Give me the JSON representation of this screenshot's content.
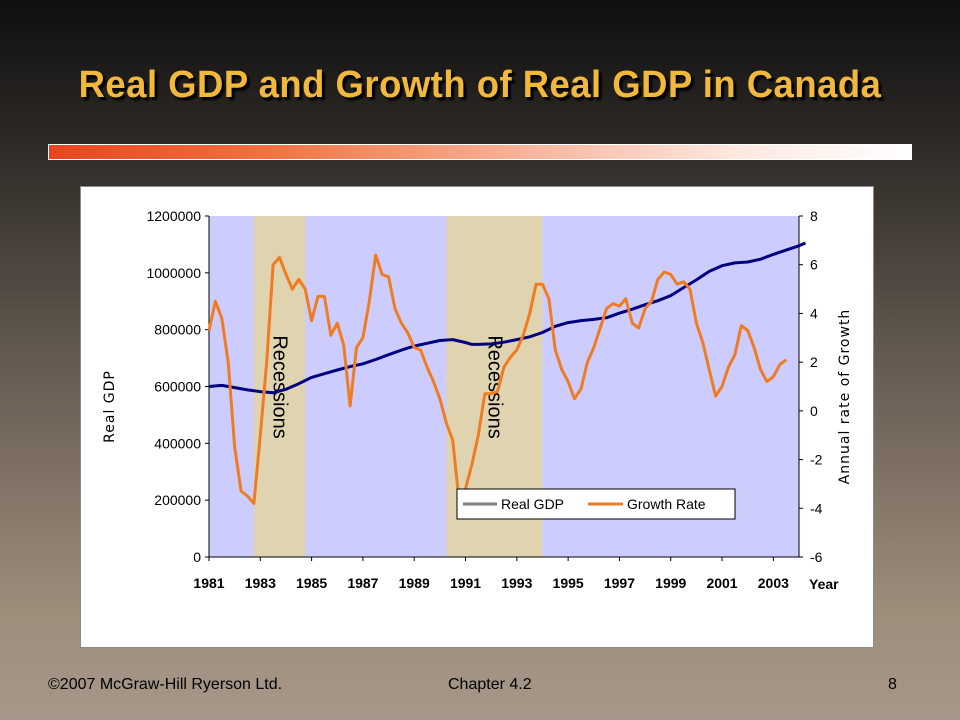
{
  "slide": {
    "title": "Real GDP and Growth of Real GDP in Canada",
    "footer_left": "©2007 McGraw-Hill Ryerson Ltd.",
    "footer_center": "Chapter 4.2",
    "footer_right": "8",
    "accent_colors": {
      "title": "#f2b83c",
      "bar_start": "#e8451d"
    }
  },
  "chart_data": {
    "type": "line",
    "xlabel": "Year",
    "ylabel": "Real GDP",
    "y2label": "Annual rate of Growth",
    "xlim": [
      1981,
      2004
    ],
    "ylim": [
      0,
      1200000
    ],
    "y2lim": [
      -6,
      8
    ],
    "x_ticks": [
      1981,
      1983,
      1985,
      1987,
      1989,
      1991,
      1993,
      1995,
      1997,
      1999,
      2001,
      2003
    ],
    "y_ticks": [
      0,
      200000,
      400000,
      600000,
      800000,
      1000000,
      1200000
    ],
    "y2_ticks": [
      -6,
      -4,
      -2,
      0,
      2,
      4,
      6,
      8
    ],
    "plot_background": "#ccccff",
    "shaded_periods": [
      {
        "label": "Recessions",
        "start": 1982.75,
        "end": 1984.75,
        "color": "#e0d4b0"
      },
      {
        "label": "Recessions",
        "start": 1990.25,
        "end": 1994.0,
        "color": "#e0d4b0"
      }
    ],
    "legend_position": "bottom-right",
    "series": [
      {
        "name": "Real GDP",
        "axis": "left",
        "color": "#000080",
        "legend_color": "#7f7f7f",
        "points": [
          [
            1981.0,
            600000
          ],
          [
            1981.5,
            604000
          ],
          [
            1982.0,
            596000
          ],
          [
            1982.5,
            588000
          ],
          [
            1983.0,
            582000
          ],
          [
            1983.5,
            578000
          ],
          [
            1984.0,
            590000
          ],
          [
            1984.5,
            610000
          ],
          [
            1985.0,
            632000
          ],
          [
            1985.5,
            645000
          ],
          [
            1986.0,
            658000
          ],
          [
            1986.5,
            670000
          ],
          [
            1987.0,
            680000
          ],
          [
            1987.5,
            695000
          ],
          [
            1988.0,
            712000
          ],
          [
            1988.5,
            728000
          ],
          [
            1989.0,
            742000
          ],
          [
            1989.5,
            752000
          ],
          [
            1990.0,
            762000
          ],
          [
            1990.5,
            765000
          ],
          [
            1991.0,
            755000
          ],
          [
            1991.25,
            748000
          ],
          [
            1991.5,
            748000
          ],
          [
            1992.0,
            750000
          ],
          [
            1992.5,
            756000
          ],
          [
            1993.0,
            765000
          ],
          [
            1993.5,
            775000
          ],
          [
            1994.0,
            790000
          ],
          [
            1994.5,
            812000
          ],
          [
            1995.0,
            825000
          ],
          [
            1995.5,
            832000
          ],
          [
            1996.0,
            836000
          ],
          [
            1996.5,
            842000
          ],
          [
            1997.0,
            858000
          ],
          [
            1997.5,
            872000
          ],
          [
            1998.0,
            888000
          ],
          [
            1998.5,
            902000
          ],
          [
            1999.0,
            920000
          ],
          [
            1999.5,
            948000
          ],
          [
            2000.0,
            975000
          ],
          [
            2000.5,
            1005000
          ],
          [
            2001.0,
            1025000
          ],
          [
            2001.5,
            1035000
          ],
          [
            2002.0,
            1038000
          ],
          [
            2002.5,
            1048000
          ],
          [
            2003.0,
            1065000
          ],
          [
            2003.5,
            1080000
          ],
          [
            2004.0,
            1095000
          ],
          [
            2004.25,
            1105000
          ]
        ]
      },
      {
        "name": "Growth Rate",
        "axis": "right",
        "color": "#f07c22",
        "points": [
          [
            1981.0,
            3.3
          ],
          [
            1981.25,
            4.5
          ],
          [
            1981.5,
            3.8
          ],
          [
            1981.75,
            2.0
          ],
          [
            1982.0,
            -1.5
          ],
          [
            1982.25,
            -3.3
          ],
          [
            1982.5,
            -3.5
          ],
          [
            1982.75,
            -3.8
          ],
          [
            1983.0,
            -1.0
          ],
          [
            1983.25,
            2.0
          ],
          [
            1983.5,
            6.0
          ],
          [
            1983.75,
            6.3
          ],
          [
            1984.0,
            5.6
          ],
          [
            1984.25,
            5.0
          ],
          [
            1984.5,
            5.4
          ],
          [
            1984.75,
            5.0
          ],
          [
            1985.0,
            3.7
          ],
          [
            1985.25,
            4.7
          ],
          [
            1985.5,
            4.7
          ],
          [
            1985.75,
            3.1
          ],
          [
            1986.0,
            3.6
          ],
          [
            1986.25,
            2.7
          ],
          [
            1986.5,
            0.2
          ],
          [
            1986.75,
            2.6
          ],
          [
            1987.0,
            3.0
          ],
          [
            1987.25,
            4.5
          ],
          [
            1987.5,
            6.4
          ],
          [
            1987.75,
            5.6
          ],
          [
            1988.0,
            5.5
          ],
          [
            1988.25,
            4.2
          ],
          [
            1988.5,
            3.6
          ],
          [
            1988.75,
            3.2
          ],
          [
            1989.0,
            2.6
          ],
          [
            1989.25,
            2.5
          ],
          [
            1989.5,
            1.8
          ],
          [
            1989.75,
            1.2
          ],
          [
            1990.0,
            0.5
          ],
          [
            1990.25,
            -0.5
          ],
          [
            1990.5,
            -1.2
          ],
          [
            1990.75,
            -3.7
          ],
          [
            1991.0,
            -3.2
          ],
          [
            1991.25,
            -2.2
          ],
          [
            1991.5,
            -1.0
          ],
          [
            1991.75,
            0.7
          ],
          [
            1992.0,
            0.7
          ],
          [
            1992.25,
            0.8
          ],
          [
            1992.5,
            1.8
          ],
          [
            1992.75,
            2.2
          ],
          [
            1993.0,
            2.5
          ],
          [
            1993.25,
            3.1
          ],
          [
            1993.5,
            4.0
          ],
          [
            1993.75,
            5.2
          ],
          [
            1994.0,
            5.2
          ],
          [
            1994.25,
            4.6
          ],
          [
            1994.5,
            2.5
          ],
          [
            1994.75,
            1.7
          ],
          [
            1995.0,
            1.2
          ],
          [
            1995.25,
            0.5
          ],
          [
            1995.5,
            0.9
          ],
          [
            1995.75,
            2.0
          ],
          [
            1996.0,
            2.6
          ],
          [
            1996.25,
            3.4
          ],
          [
            1996.5,
            4.2
          ],
          [
            1996.75,
            4.4
          ],
          [
            1997.0,
            4.3
          ],
          [
            1997.25,
            4.6
          ],
          [
            1997.5,
            3.6
          ],
          [
            1997.75,
            3.4
          ],
          [
            1998.0,
            4.2
          ],
          [
            1998.25,
            4.5
          ],
          [
            1998.5,
            5.4
          ],
          [
            1998.75,
            5.7
          ],
          [
            1999.0,
            5.6
          ],
          [
            1999.25,
            5.2
          ],
          [
            1999.5,
            5.3
          ],
          [
            1999.75,
            5.0
          ],
          [
            2000.0,
            3.6
          ],
          [
            2000.25,
            2.8
          ],
          [
            2000.5,
            1.7
          ],
          [
            2000.75,
            0.6
          ],
          [
            2001.0,
            1.0
          ],
          [
            2001.25,
            1.8
          ],
          [
            2001.5,
            2.3
          ],
          [
            2001.75,
            3.5
          ],
          [
            2002.0,
            3.3
          ],
          [
            2002.25,
            2.6
          ],
          [
            2002.5,
            1.7
          ],
          [
            2002.75,
            1.2
          ],
          [
            2003.0,
            1.4
          ],
          [
            2003.25,
            1.9
          ],
          [
            2003.5,
            2.1
          ]
        ]
      }
    ]
  }
}
